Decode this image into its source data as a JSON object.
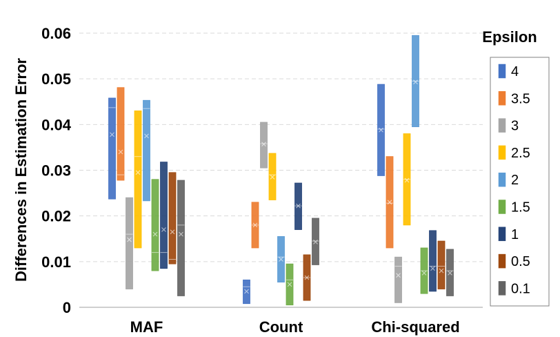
{
  "chart_data": {
    "type": "box",
    "ylabel": "Differences in Estimation Error",
    "ylim": [
      0,
      0.06
    ],
    "yticks": [
      "0",
      "0.01",
      "0.02",
      "0.03",
      "0.04",
      "0.05",
      "0.06"
    ],
    "categories": [
      "MAF",
      "Count",
      "Chi-squared"
    ],
    "legend_title": "Epsilon",
    "legend_position": "right",
    "grid": true,
    "series": [
      {
        "name": "4",
        "color": "#4472c4",
        "boxes": [
          {
            "low": 0.0237,
            "high": 0.0458,
            "median": 0.0437,
            "mean": 0.0378
          },
          {
            "low": 0.0008,
            "high": 0.006,
            "median": 0.0045,
            "mean": 0.0035
          },
          {
            "low": 0.0288,
            "high": 0.0488,
            "median": 0.039,
            "mean": 0.0388
          }
        ]
      },
      {
        "name": "3.5",
        "color": "#ed7d31",
        "boxes": [
          {
            "low": 0.0278,
            "high": 0.0481,
            "median": 0.029,
            "mean": 0.034
          },
          {
            "low": 0.013,
            "high": 0.023,
            "median": 0.018,
            "mean": 0.018
          },
          {
            "low": 0.013,
            "high": 0.033,
            "median": 0.0228,
            "mean": 0.023
          }
        ]
      },
      {
        "name": "3",
        "color": "#a5a5a5",
        "boxes": [
          {
            "low": 0.004,
            "high": 0.024,
            "median": 0.016,
            "mean": 0.0148
          },
          {
            "low": 0.0305,
            "high": 0.0405,
            "median": 0.0358,
            "mean": 0.0357
          },
          {
            "low": 0.001,
            "high": 0.011,
            "median": 0.009,
            "mean": 0.007
          }
        ]
      },
      {
        "name": "2.5",
        "color": "#ffc000",
        "boxes": [
          {
            "low": 0.013,
            "high": 0.043,
            "median": 0.033,
            "mean": 0.0295
          },
          {
            "low": 0.0235,
            "high": 0.0337,
            "median": 0.029,
            "mean": 0.0285
          },
          {
            "low": 0.018,
            "high": 0.038,
            "median": 0.028,
            "mean": 0.0278
          }
        ]
      },
      {
        "name": "2",
        "color": "#5b9bd5",
        "boxes": [
          {
            "low": 0.0233,
            "high": 0.0453,
            "median": 0.0435,
            "mean": 0.0375
          },
          {
            "low": 0.0055,
            "high": 0.0155,
            "median": 0.011,
            "mean": 0.0105
          },
          {
            "low": 0.0395,
            "high": 0.0595,
            "median": 0.0495,
            "mean": 0.0493
          }
        ]
      },
      {
        "name": "1.5",
        "color": "#70ad47",
        "boxes": [
          {
            "low": 0.008,
            "high": 0.028,
            "median": 0.012,
            "mean": 0.016
          },
          {
            "low": 0.0005,
            "high": 0.0095,
            "median": 0.006,
            "mean": 0.005
          },
          {
            "low": 0.003,
            "high": 0.013,
            "median": 0.008,
            "mean": 0.0075
          }
        ]
      },
      {
        "name": "1",
        "color": "#264478",
        "boxes": [
          {
            "low": 0.0085,
            "high": 0.0318,
            "median": 0.012,
            "mean": 0.017
          },
          {
            "low": 0.017,
            "high": 0.0272,
            "median": 0.0222,
            "mean": 0.0222
          },
          {
            "low": 0.0035,
            "high": 0.0168,
            "median": 0.009,
            "mean": 0.0085
          }
        ]
      },
      {
        "name": "0.5",
        "color": "#9e480e",
        "boxes": [
          {
            "low": 0.0095,
            "high": 0.0295,
            "median": 0.0105,
            "mean": 0.0165
          },
          {
            "low": 0.0015,
            "high": 0.0115,
            "median": 0.0065,
            "mean": 0.0065
          },
          {
            "low": 0.004,
            "high": 0.0145,
            "median": 0.009,
            "mean": 0.008
          }
        ]
      },
      {
        "name": "0.1",
        "color": "#636363",
        "boxes": [
          {
            "low": 0.0025,
            "high": 0.0278,
            "median": 0.018,
            "mean": 0.016
          },
          {
            "low": 0.0093,
            "high": 0.0195,
            "median": 0.0145,
            "mean": 0.0143
          },
          {
            "low": 0.0025,
            "high": 0.0127,
            "median": 0.008,
            "mean": 0.0075
          }
        ]
      }
    ]
  }
}
